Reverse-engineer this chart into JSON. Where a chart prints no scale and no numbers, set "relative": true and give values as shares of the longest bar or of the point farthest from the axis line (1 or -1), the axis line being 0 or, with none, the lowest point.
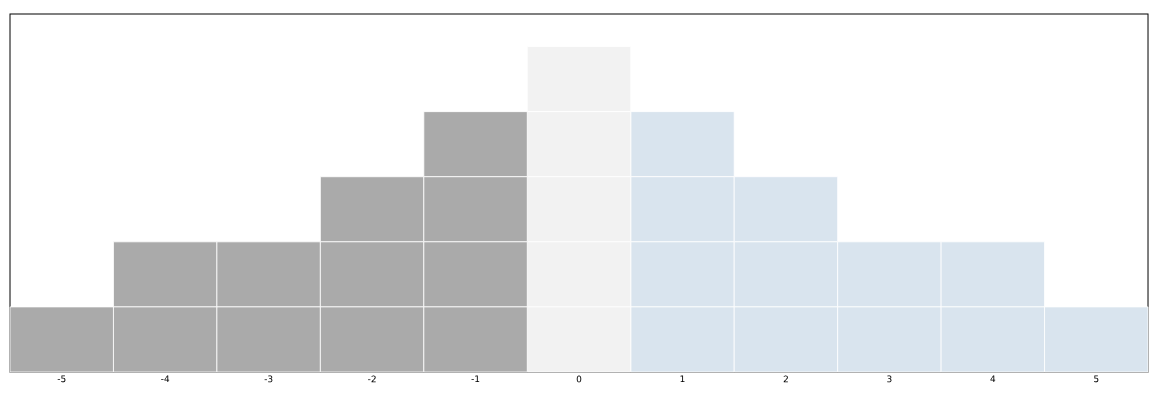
{
  "chart_data": {
    "type": "bar",
    "relative": true,
    "stacked": true,
    "categories": [
      "-5",
      "-4",
      "-3",
      "-2",
      "-1",
      "0",
      "1",
      "2",
      "3",
      "4",
      "5"
    ],
    "series": [
      {
        "colors": [
          "#aaaaaa",
          "#aaaaaa",
          "#aaaaaa",
          "#aaaaaa",
          "#aaaaaa",
          "#f2f2f2",
          "#d9e4ee",
          "#d9e4ee",
          "#d9e4ee",
          "#d9e4ee",
          "#d9e4ee"
        ],
        "values": [
          0.2,
          0.2,
          0.2,
          0.2,
          0.2,
          0.2,
          0.2,
          0.2,
          0.2,
          0.2,
          0.2
        ]
      },
      {
        "colors": [
          "#aaaaaa",
          "#aaaaaa",
          "#aaaaaa",
          "#aaaaaa",
          "#aaaaaa",
          "#f2f2f2",
          "#d9e4ee",
          "#d9e4ee",
          "#d9e4ee",
          "#d9e4ee",
          "#d9e4ee"
        ],
        "values": [
          null,
          0.2,
          0.2,
          0.2,
          0.2,
          0.2,
          0.2,
          0.2,
          0.2,
          0.2,
          null
        ]
      },
      {
        "colors": [
          "#aaaaaa",
          "#aaaaaa",
          "#aaaaaa",
          "#aaaaaa",
          "#aaaaaa",
          "#f2f2f2",
          "#d9e4ee",
          "#d9e4ee",
          "#d9e4ee",
          "#d9e4ee",
          "#d9e4ee"
        ],
        "values": [
          null,
          null,
          null,
          0.2,
          0.2,
          0.2,
          0.2,
          0.2,
          null,
          null,
          null
        ]
      },
      {
        "colors": [
          "#aaaaaa",
          "#aaaaaa",
          "#aaaaaa",
          "#aaaaaa",
          "#aaaaaa",
          "#f2f2f2",
          "#d9e4ee",
          "#d9e4ee",
          "#d9e4ee",
          "#d9e4ee",
          "#d9e4ee"
        ],
        "values": [
          null,
          null,
          null,
          null,
          0.2,
          0.2,
          0.2,
          null,
          null,
          null,
          null
        ]
      },
      {
        "colors": [
          "#aaaaaa",
          "#aaaaaa",
          "#aaaaaa",
          "#aaaaaa",
          "#aaaaaa",
          "#f2f2f2",
          "#d9e4ee",
          "#d9e4ee",
          "#d9e4ee",
          "#d9e4ee",
          "#d9e4ee"
        ],
        "values": [
          null,
          null,
          null,
          null,
          null,
          0.2,
          null,
          null,
          null,
          null,
          null
        ]
      }
    ]
  }
}
